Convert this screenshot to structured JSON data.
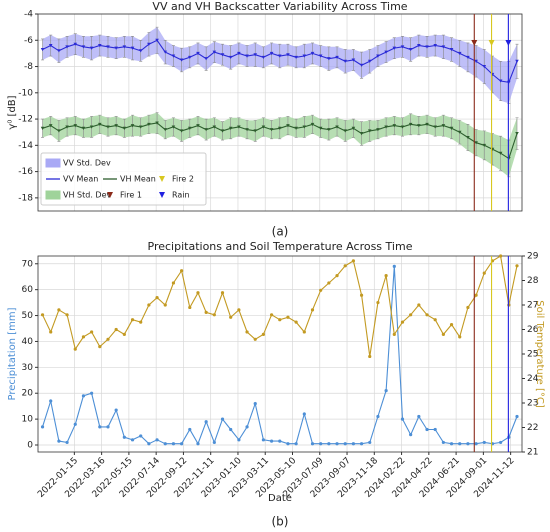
{
  "chart_data": [
    {
      "type": "line",
      "title": "VV and VH Backscatter Variability Across Time",
      "ylabel": "γ⁰ [dB]",
      "caption": "(a)",
      "x": [
        -70,
        -52,
        -34,
        -16,
        2,
        20,
        38,
        56,
        74,
        92,
        110,
        128,
        146,
        164,
        182,
        200,
        218,
        236,
        254,
        272,
        290,
        308,
        326,
        344,
        362,
        380,
        398,
        416,
        434,
        452,
        470,
        488,
        506,
        524,
        542,
        560,
        578,
        596,
        614,
        632,
        650,
        668,
        686,
        704,
        722,
        740,
        758,
        776,
        794,
        812,
        830,
        848,
        866,
        884,
        902,
        920,
        938,
        956,
        974
      ],
      "xlim": [
        -80,
        985
      ],
      "xticks": [
        0,
        60,
        120,
        180,
        240,
        300,
        360,
        420,
        480,
        540,
        600,
        660,
        720,
        780,
        840,
        900,
        960
      ],
      "ylim": [
        -19,
        -4
      ],
      "yticks": [
        -18,
        -16,
        -14,
        -12,
        -10,
        -8,
        -6,
        -4
      ],
      "grid": true,
      "legend": "lower left",
      "series": [
        {
          "name": "VV Mean",
          "color": "#2b2bd6",
          "values": [
            -6.7,
            -6.4,
            -6.8,
            -6.5,
            -6.3,
            -6.5,
            -6.6,
            -6.4,
            -6.5,
            -6.6,
            -6.5,
            -6.6,
            -6.8,
            -6.3,
            -6.0,
            -6.9,
            -7.2,
            -7.5,
            -7.3,
            -7.0,
            -7.4,
            -6.9,
            -7.1,
            -7.3,
            -7.0,
            -7.2,
            -7.1,
            -7.3,
            -7.0,
            -7.2,
            -7.1,
            -7.3,
            -7.2,
            -7.0,
            -7.2,
            -7.4,
            -7.3,
            -7.6,
            -7.5,
            -7.9,
            -7.6,
            -7.2,
            -6.9,
            -6.6,
            -6.5,
            -6.7,
            -6.4,
            -6.5,
            -6.4,
            -6.5,
            -6.7,
            -7.0,
            -7.3,
            -7.6,
            -8.0,
            -8.6,
            -9.1,
            -9.2,
            -7.6
          ],
          "std": {
            "name": "VV Std. Dev",
            "color": "#a9a9f5",
            "values": [
              0.8,
              0.8,
              0.9,
              0.8,
              0.8,
              0.8,
              0.9,
              0.8,
              0.8,
              0.8,
              0.8,
              0.9,
              0.8,
              0.9,
              1.0,
              0.9,
              0.8,
              0.9,
              0.8,
              0.8,
              0.9,
              0.8,
              0.8,
              0.9,
              0.8,
              0.8,
              0.9,
              0.8,
              0.8,
              0.9,
              0.8,
              0.8,
              0.9,
              0.8,
              0.8,
              0.9,
              0.8,
              0.9,
              0.8,
              1.0,
              0.9,
              0.8,
              0.8,
              0.8,
              0.8,
              0.9,
              0.8,
              0.8,
              0.8,
              0.9,
              0.9,
              1.0,
              1.1,
              1.2,
              1.3,
              1.4,
              1.5,
              1.6,
              1.3
            ]
          }
        },
        {
          "name": "VH Mean",
          "color": "#2e5e2e",
          "values": [
            -12.7,
            -12.5,
            -12.9,
            -12.6,
            -12.5,
            -12.7,
            -12.6,
            -12.4,
            -12.6,
            -12.5,
            -12.7,
            -12.5,
            -12.6,
            -12.4,
            -12.3,
            -12.8,
            -12.6,
            -12.9,
            -12.7,
            -12.5,
            -12.8,
            -12.6,
            -12.9,
            -12.7,
            -12.6,
            -12.8,
            -12.9,
            -12.6,
            -12.8,
            -12.7,
            -12.5,
            -12.7,
            -12.6,
            -12.4,
            -12.7,
            -12.8,
            -12.6,
            -12.9,
            -12.7,
            -13.1,
            -12.9,
            -12.8,
            -12.6,
            -12.5,
            -12.6,
            -12.4,
            -12.5,
            -12.4,
            -12.6,
            -12.5,
            -12.7,
            -13.0,
            -13.4,
            -13.8,
            -14.0,
            -14.3,
            -14.6,
            -15.0,
            -13.1
          ],
          "std": {
            "name": "VH Std. Dev",
            "color": "#9fd39a",
            "values": [
              0.7,
              0.7,
              0.8,
              0.7,
              0.7,
              0.7,
              0.8,
              0.7,
              0.7,
              0.7,
              0.7,
              0.8,
              0.7,
              0.7,
              0.8,
              0.7,
              0.7,
              0.8,
              0.7,
              0.7,
              0.8,
              0.7,
              0.7,
              0.8,
              0.7,
              0.7,
              0.8,
              0.7,
              0.7,
              0.8,
              0.7,
              0.7,
              0.8,
              0.7,
              0.7,
              0.8,
              0.7,
              0.8,
              0.7,
              0.9,
              0.8,
              0.7,
              0.7,
              0.7,
              0.7,
              0.8,
              0.7,
              0.7,
              0.7,
              0.8,
              0.8,
              0.9,
              1.0,
              1.0,
              1.1,
              1.2,
              1.3,
              1.4,
              1.2
            ]
          }
        }
      ],
      "events": [
        {
          "name": "Fire 1",
          "color": "#8b2a1a",
          "x": 880
        },
        {
          "name": "Fire 2",
          "color": "#d8c820",
          "x": 918
        },
        {
          "name": "Rain",
          "color": "#2020e0",
          "x": 955
        }
      ]
    },
    {
      "type": "line",
      "title": "Precipitations and Soil Temperature Across Time",
      "xlabel": "Date",
      "ylabel": "Precipitation [mm]",
      "y2label": "Soil Temperature [°C]",
      "caption": "(b)",
      "x": [
        -70,
        -52,
        -34,
        -16,
        2,
        20,
        38,
        56,
        74,
        92,
        110,
        128,
        146,
        164,
        182,
        200,
        218,
        236,
        254,
        272,
        290,
        308,
        326,
        344,
        362,
        380,
        398,
        416,
        434,
        452,
        470,
        488,
        506,
        524,
        542,
        560,
        578,
        596,
        614,
        632,
        650,
        668,
        686,
        704,
        722,
        740,
        758,
        776,
        794,
        812,
        830,
        848,
        866,
        884,
        902,
        920,
        938,
        956,
        974
      ],
      "xlim": [
        -80,
        985
      ],
      "xticks": [
        {
          "value": 0,
          "label": "2022-01-15"
        },
        {
          "value": 60,
          "label": "2022-03-16"
        },
        {
          "value": 120,
          "label": "2022-05-15"
        },
        {
          "value": 180,
          "label": "2022-07-14"
        },
        {
          "value": 240,
          "label": "2022-09-12"
        },
        {
          "value": 300,
          "label": "2022-11-11"
        },
        {
          "value": 360,
          "label": "2023-01-10"
        },
        {
          "value": 420,
          "label": "2023-03-11"
        },
        {
          "value": 480,
          "label": "2023-05-10"
        },
        {
          "value": 540,
          "label": "2023-07-09"
        },
        {
          "value": 600,
          "label": "2023-09-07"
        },
        {
          "value": 660,
          "label": "2023-11-18"
        },
        {
          "value": 720,
          "label": "2024-02-22"
        },
        {
          "value": 780,
          "label": "2024-04-22"
        },
        {
          "value": 840,
          "label": "2024-06-21"
        },
        {
          "value": 900,
          "label": "2024-09-01"
        },
        {
          "value": 960,
          "label": "2024-11-12"
        }
      ],
      "ylim": [
        -2.7,
        73
      ],
      "yticks": [
        0,
        10,
        20,
        30,
        40,
        50,
        60,
        70
      ],
      "y2lim": [
        21,
        29
      ],
      "y2ticks": [
        21,
        22,
        23,
        24,
        25,
        26,
        27,
        28,
        29
      ],
      "grid": true,
      "series": [
        {
          "name": "Precipitation",
          "color": "#4d8fd6",
          "values": [
            7,
            17,
            1.5,
            1,
            8,
            19,
            20,
            7,
            7,
            13.5,
            3,
            2,
            3.5,
            0.5,
            2,
            0.5,
            0.5,
            0.5,
            6,
            0.5,
            9,
            1,
            10,
            6,
            2,
            7,
            16,
            2,
            1.5,
            1.5,
            0.5,
            0.5,
            12,
            0.5,
            0.5,
            0.5,
            0.5,
            0.5,
            0.5,
            0.5,
            1,
            11,
            21,
            69,
            10,
            4,
            11,
            6,
            6,
            1,
            0.5,
            0.5,
            0.5,
            0.5,
            1,
            0.5,
            1,
            3,
            11
          ]
        },
        {
          "name": "Soil Temperature",
          "color": "#c39a22",
          "axis": "y2",
          "values": [
            26.6,
            25.9,
            26.8,
            26.6,
            25.2,
            25.7,
            25.9,
            25.3,
            25.6,
            26.0,
            25.8,
            26.4,
            26.3,
            27.0,
            27.3,
            27.0,
            27.9,
            28.4,
            26.9,
            27.5,
            26.7,
            26.6,
            27.5,
            26.5,
            26.8,
            25.9,
            25.6,
            25.8,
            26.6,
            26.4,
            26.5,
            26.3,
            25.9,
            26.8,
            27.6,
            27.9,
            28.2,
            28.6,
            28.8,
            27.4,
            24.9,
            27.1,
            28.2,
            25.8,
            26.3,
            26.6,
            27.0,
            26.6,
            26.4,
            25.8,
            26.2,
            25.7,
            26.9,
            27.4,
            28.3,
            28.8,
            29.0,
            27.0,
            28.6
          ]
        }
      ]
    }
  ]
}
